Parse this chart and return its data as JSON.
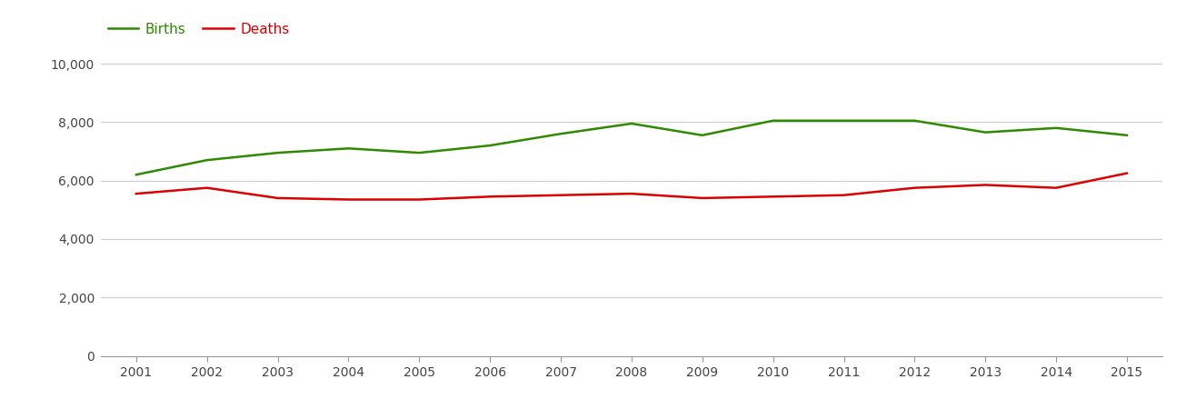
{
  "years": [
    2001,
    2002,
    2003,
    2004,
    2005,
    2006,
    2007,
    2008,
    2009,
    2010,
    2011,
    2012,
    2013,
    2014,
    2015
  ],
  "births": [
    6200,
    6700,
    6950,
    7100,
    6950,
    7200,
    7600,
    7950,
    7550,
    8050,
    8050,
    8050,
    7650,
    7800,
    7550
  ],
  "deaths": [
    5550,
    5750,
    5400,
    5350,
    5350,
    5450,
    5500,
    5550,
    5400,
    5450,
    5500,
    5750,
    5850,
    5750,
    6250
  ],
  "births_color": "#2e8b00",
  "deaths_color": "#dd0000",
  "background_color": "#ffffff",
  "grid_color": "#cccccc",
  "ylim": [
    0,
    10500
  ],
  "yticks": [
    0,
    2000,
    4000,
    6000,
    8000,
    10000
  ],
  "ytick_labels": [
    "0",
    "2,000",
    "4,000",
    "6,000",
    "8,000",
    "10,000"
  ],
  "legend_births": "Births",
  "legend_deaths": "Deaths",
  "line_width": 1.8,
  "tick_fontsize": 10,
  "legend_fontsize": 11
}
